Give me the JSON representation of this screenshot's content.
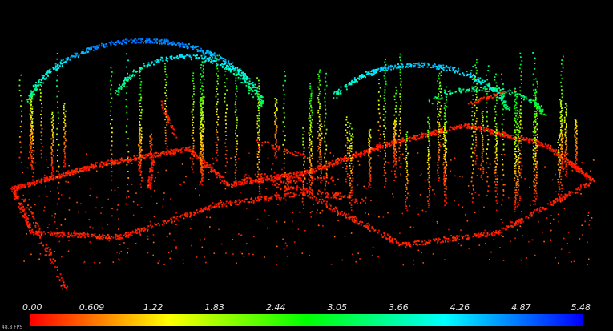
{
  "colorbar": {
    "ticks": [
      "0.00",
      "0.609",
      "1.22",
      "1.83",
      "2.44",
      "3.05",
      "3.66",
      "4.26",
      "4.87",
      "5.48"
    ],
    "stops": [
      "#ff0000",
      "#ffff00",
      "#00ff00",
      "#00ffff",
      "#0000ff"
    ]
  },
  "status": {
    "fps": "48.8 FPS"
  }
}
